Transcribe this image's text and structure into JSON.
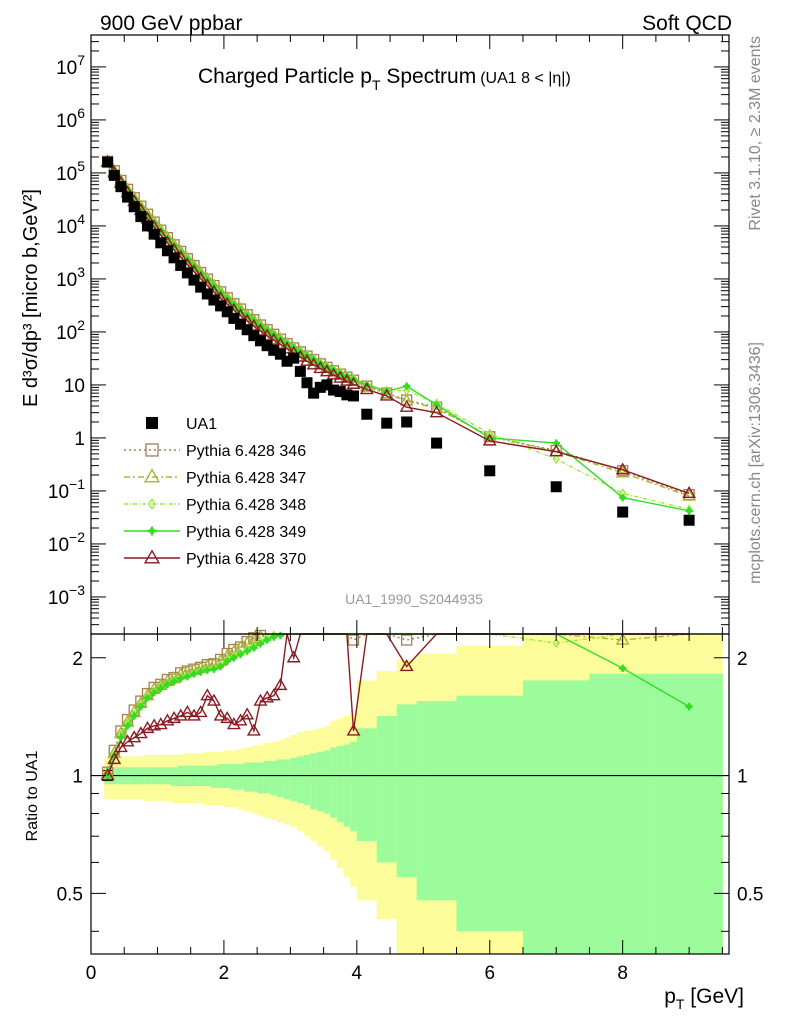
{
  "header": {
    "left": "900 GeV ppbar",
    "right": "Soft QCD"
  },
  "side_labels": {
    "rivet": "Rivet 3.1.10, ≥ 2.3M events",
    "mcplots": "mcplots.cern.ch [arXiv:1306.3436]"
  },
  "chart_data": {
    "type": "scatter",
    "title": "Charged Particle p",
    "title_sub": "T",
    "title_tail": " Spectrum",
    "title_note": "(UA1   8 < |η|)",
    "analysis_id": "UA1_1990_S2044935",
    "ylabel": "E d³σ/dp³ [micro b,GeV²]",
    "ratio_ylabel": "Ratio to UA1",
    "xlabel": "p",
    "xlabel_sub": "T",
    "xlabel_unit": " [GeV]",
    "xlim": [
      0,
      9.6
    ],
    "ylim_log": [
      0.0002,
      40000000
    ],
    "ratio_ylim": [
      0.35,
      2.3
    ],
    "x_ticks": [
      "0",
      "2",
      "4",
      "6",
      "8"
    ],
    "y_ticks": [
      {
        "value": 0.001,
        "base": "10",
        "exp": "−3"
      },
      {
        "value": 0.01,
        "base": "10",
        "exp": "−2"
      },
      {
        "value": 0.1,
        "base": "10",
        "exp": "−1"
      },
      {
        "value": 1,
        "base": "1",
        "exp": ""
      },
      {
        "value": 10,
        "base": "10",
        "exp": ""
      },
      {
        "value": 100,
        "base": "10",
        "exp": "2"
      },
      {
        "value": 1000,
        "base": "10",
        "exp": "3"
      },
      {
        "value": 10000,
        "base": "10",
        "exp": "4"
      },
      {
        "value": 100000,
        "base": "10",
        "exp": "5"
      },
      {
        "value": 1000000,
        "base": "10",
        "exp": "6"
      },
      {
        "value": 10000000,
        "base": "10",
        "exp": "7"
      }
    ],
    "ratio_ticks": [
      {
        "value": 0.5,
        "label": "0.5"
      },
      {
        "value": 1,
        "label": "1"
      },
      {
        "value": 2,
        "label": "2"
      }
    ],
    "data": {
      "name": "UA1",
      "color": "#000000",
      "x": [
        0.25,
        0.35,
        0.45,
        0.55,
        0.65,
        0.75,
        0.85,
        0.95,
        1.05,
        1.15,
        1.25,
        1.35,
        1.45,
        1.55,
        1.65,
        1.75,
        1.85,
        1.95,
        2.05,
        2.15,
        2.25,
        2.35,
        2.45,
        2.55,
        2.65,
        2.75,
        2.85,
        2.95,
        3.05,
        3.15,
        3.25,
        3.35,
        3.45,
        3.55,
        3.65,
        3.75,
        3.85,
        3.95,
        4.15,
        4.45,
        4.75,
        5.2,
        6.0,
        7.0,
        8.0,
        9.0
      ],
      "y": [
        160000,
        90000,
        55000,
        35000,
        23000,
        15000,
        10000,
        7000,
        4800,
        3400,
        2500,
        1800,
        1300,
        950,
        700,
        520,
        400,
        310,
        240,
        180,
        140,
        110,
        85,
        68,
        55,
        45,
        38,
        28,
        32,
        18,
        11,
        7,
        9,
        10,
        8,
        7.5,
        6.5,
        6.2,
        2.8,
        1.9,
        2.0,
        0.8,
        0.24,
        0.12,
        0.04,
        0.028
      ]
    },
    "uncertainty_bands": {
      "x_edges": [
        0.2,
        0.3,
        0.4,
        0.5,
        0.6,
        0.7,
        0.8,
        0.9,
        1.0,
        1.1,
        1.2,
        1.3,
        1.4,
        1.5,
        1.6,
        1.7,
        1.8,
        1.9,
        2.0,
        2.1,
        2.2,
        2.3,
        2.4,
        2.5,
        2.6,
        2.7,
        2.8,
        2.9,
        3.0,
        3.1,
        3.2,
        3.3,
        3.4,
        3.5,
        3.6,
        3.7,
        3.8,
        3.9,
        4.0,
        4.3,
        4.6,
        4.9,
        5.5,
        6.5,
        7.5,
        8.5,
        9.5
      ],
      "yellow_hi": [
        1.12,
        1.12,
        1.12,
        1.12,
        1.12,
        1.12,
        1.13,
        1.13,
        1.13,
        1.13,
        1.13,
        1.13,
        1.14,
        1.14,
        1.14,
        1.15,
        1.15,
        1.15,
        1.16,
        1.16,
        1.17,
        1.18,
        1.19,
        1.2,
        1.21,
        1.22,
        1.23,
        1.25,
        1.27,
        1.29,
        1.3,
        1.31,
        1.32,
        1.34,
        1.38,
        1.4,
        1.42,
        1.44,
        1.75,
        1.85,
        1.98,
        2.05,
        2.15,
        2.3,
        2.3,
        2.3
      ],
      "yellow_lo": [
        0.87,
        0.87,
        0.87,
        0.87,
        0.87,
        0.87,
        0.86,
        0.86,
        0.86,
        0.86,
        0.85,
        0.85,
        0.85,
        0.85,
        0.85,
        0.84,
        0.84,
        0.84,
        0.83,
        0.83,
        0.82,
        0.81,
        0.8,
        0.79,
        0.78,
        0.77,
        0.76,
        0.75,
        0.74,
        0.72,
        0.7,
        0.68,
        0.66,
        0.64,
        0.61,
        0.58,
        0.55,
        0.52,
        0.48,
        0.43,
        0.35,
        0.35,
        0.35,
        0.35,
        0.35,
        0.35
      ],
      "green_hi": [
        1.05,
        1.05,
        1.05,
        1.05,
        1.05,
        1.05,
        1.05,
        1.05,
        1.05,
        1.05,
        1.05,
        1.06,
        1.06,
        1.06,
        1.06,
        1.06,
        1.06,
        1.07,
        1.07,
        1.07,
        1.07,
        1.08,
        1.08,
        1.08,
        1.09,
        1.09,
        1.1,
        1.1,
        1.11,
        1.12,
        1.13,
        1.14,
        1.15,
        1.16,
        1.18,
        1.19,
        1.2,
        1.22,
        1.32,
        1.42,
        1.52,
        1.55,
        1.6,
        1.75,
        1.82,
        1.82
      ],
      "green_lo": [
        0.95,
        0.95,
        0.95,
        0.95,
        0.95,
        0.95,
        0.95,
        0.95,
        0.95,
        0.95,
        0.94,
        0.94,
        0.94,
        0.94,
        0.94,
        0.94,
        0.93,
        0.93,
        0.93,
        0.92,
        0.92,
        0.91,
        0.91,
        0.9,
        0.9,
        0.89,
        0.88,
        0.87,
        0.86,
        0.85,
        0.84,
        0.82,
        0.81,
        0.8,
        0.78,
        0.76,
        0.74,
        0.72,
        0.68,
        0.6,
        0.55,
        0.48,
        0.4,
        0.35,
        0.35,
        0.35
      ]
    },
    "series": [
      {
        "name": "Pythia 6.428 346",
        "color": "#a87d50",
        "marker": "square",
        "dash": "2,3",
        "x": [
          0.25,
          0.35,
          0.45,
          0.55,
          0.65,
          0.75,
          0.85,
          0.95,
          1.05,
          1.15,
          1.25,
          1.35,
          1.45,
          1.55,
          1.65,
          1.75,
          1.85,
          1.95,
          2.05,
          2.15,
          2.25,
          2.35,
          2.45,
          2.55,
          2.65,
          2.75,
          2.85,
          2.95,
          3.05,
          3.15,
          3.25,
          3.35,
          3.45,
          3.55,
          3.65,
          3.75,
          3.85,
          3.95,
          4.15,
          4.45,
          4.75,
          5.2,
          6.0,
          7.0,
          8.0,
          9.0
        ],
        "y": [
          165000,
          110000,
          72000,
          49000,
          34000,
          23500,
          16600,
          11800,
          8300,
          6000,
          4400,
          3300,
          2400,
          1780,
          1320,
          990,
          750,
          570,
          440,
          340,
          270,
          210,
          170,
          135,
          110,
          90,
          73,
          60,
          50,
          42,
          35,
          30,
          25,
          21.5,
          18.5,
          16,
          14,
          12.3,
          9.5,
          7,
          5.2,
          3.8,
          1.05,
          0.58,
          0.24,
          0.085
        ],
        "ratio": [
          1.02,
          1.16,
          1.3,
          1.39,
          1.47,
          1.55,
          1.62,
          1.68,
          1.71,
          1.76,
          1.78,
          1.83,
          1.85,
          1.87,
          1.89,
          1.92,
          1.93,
          1.98,
          2.05,
          2.1,
          2.13,
          2.2,
          2.25,
          2.28,
          2.3,
          2.3,
          2.3,
          2.3,
          2.3,
          2.3,
          2.3,
          2.3,
          2.3,
          2.3,
          2.3,
          2.3,
          2.3,
          2.22,
          2.3,
          2.3,
          2.22,
          2.3,
          2.3,
          2.3,
          2.3,
          2.3
        ]
      },
      {
        "name": "Pythia 6.428 347",
        "color": "#a6b535",
        "marker": "triangle",
        "dash": "6,3,2,3",
        "x": [
          0.25,
          0.35,
          0.45,
          0.55,
          0.65,
          0.75,
          0.85,
          0.95,
          1.05,
          1.15,
          1.25,
          1.35,
          1.45,
          1.55,
          1.65,
          1.75,
          1.85,
          1.95,
          2.05,
          2.15,
          2.25,
          2.35,
          2.45,
          2.55,
          2.65,
          2.75,
          2.85,
          2.95,
          3.05,
          3.15,
          3.25,
          3.35,
          3.45,
          3.55,
          3.65,
          3.75,
          3.85,
          3.95,
          4.15,
          4.45,
          4.75,
          5.2,
          6.0,
          7.0,
          8.0,
          9.0
        ],
        "y": [
          163000,
          108000,
          71000,
          48000,
          33500,
          23000,
          16300,
          11600,
          8200,
          5900,
          4350,
          3250,
          2380,
          1760,
          1300,
          980,
          740,
          560,
          430,
          330,
          265,
          205,
          165,
          132,
          107,
          88,
          72,
          59,
          49,
          41,
          34,
          29,
          24.5,
          21,
          18,
          15.6,
          13.7,
          12,
          9.3,
          6.8,
          5.0,
          3.6,
          1.1,
          0.55,
          0.22,
          0.08
        ],
        "ratio": [
          1.01,
          1.14,
          1.28,
          1.37,
          1.45,
          1.53,
          1.6,
          1.66,
          1.7,
          1.74,
          1.77,
          1.81,
          1.84,
          1.86,
          1.88,
          1.9,
          1.92,
          1.96,
          2.02,
          2.07,
          2.12,
          2.18,
          2.22,
          2.26,
          2.3,
          2.3,
          2.3,
          2.3,
          2.3,
          2.3,
          2.3,
          2.3,
          2.3,
          2.3,
          2.3,
          2.3,
          2.3,
          2.3,
          2.3,
          2.3,
          2.3,
          2.3,
          2.3,
          2.3,
          2.22,
          2.3
        ]
      },
      {
        "name": "Pythia 6.428 348",
        "color": "#9ee83e",
        "marker": "diamond",
        "dash": "4,2,1,2",
        "x": [
          0.25,
          0.35,
          0.45,
          0.55,
          0.65,
          0.75,
          0.85,
          0.95,
          1.05,
          1.15,
          1.25,
          1.35,
          1.45,
          1.55,
          1.65,
          1.75,
          1.85,
          1.95,
          2.05,
          2.15,
          2.25,
          2.35,
          2.45,
          2.55,
          2.65,
          2.75,
          2.85,
          2.95,
          3.05,
          3.15,
          3.25,
          3.35,
          3.45,
          3.55,
          3.65,
          3.75,
          3.85,
          3.95,
          4.15,
          4.45,
          4.75,
          5.2,
          6.0,
          7.0,
          8.0,
          9.0
        ],
        "y": [
          162000,
          106000,
          70000,
          47500,
          33000,
          22800,
          16000,
          11500,
          8100,
          5850,
          4300,
          3200,
          2350,
          1740,
          1290,
          970,
          735,
          555,
          428,
          330,
          262,
          204,
          164,
          132,
          108,
          89,
          74,
          61,
          51,
          43,
          36,
          30.5,
          26,
          22.5,
          19.5,
          17,
          15,
          13.2,
          10.2,
          7.8,
          7.8,
          4.5,
          1.2,
          0.4,
          0.09,
          0.045
        ],
        "ratio": [
          1.01,
          1.13,
          1.27,
          1.36,
          1.43,
          1.52,
          1.6,
          1.64,
          1.69,
          1.72,
          1.75,
          1.78,
          1.8,
          1.83,
          1.85,
          1.87,
          1.88,
          1.92,
          1.98,
          2.02,
          2.05,
          2.1,
          2.15,
          2.2,
          2.25,
          2.28,
          2.3,
          2.3,
          2.3,
          2.3,
          2.3,
          2.3,
          2.3,
          2.3,
          2.3,
          2.3,
          2.3,
          2.3,
          2.3,
          2.3,
          2.3,
          2.3,
          2.3,
          2.18,
          2.3,
          2.3
        ]
      },
      {
        "name": "Pythia 6.428 349",
        "color": "#33dd22",
        "marker": "cross",
        "dash": "",
        "x": [
          0.25,
          0.35,
          0.45,
          0.55,
          0.65,
          0.75,
          0.85,
          0.95,
          1.05,
          1.15,
          1.25,
          1.35,
          1.45,
          1.55,
          1.65,
          1.75,
          1.85,
          1.95,
          2.05,
          2.15,
          2.25,
          2.35,
          2.45,
          2.55,
          2.65,
          2.75,
          2.85,
          2.95,
          3.05,
          3.15,
          3.25,
          3.35,
          3.45,
          3.55,
          3.65,
          3.75,
          3.85,
          3.95,
          4.15,
          4.45,
          4.75,
          5.2,
          6.0,
          7.0,
          8.0,
          9.0
        ],
        "y": [
          162000,
          105000,
          69500,
          47000,
          32800,
          22600,
          15900,
          11400,
          8050,
          5800,
          4250,
          3180,
          2330,
          1730,
          1280,
          960,
          730,
          552,
          425,
          328,
          260,
          203,
          163,
          131,
          107,
          88,
          73,
          60,
          50,
          42,
          35.5,
          30,
          25.5,
          22,
          19,
          16.6,
          14.6,
          12.8,
          10,
          7.6,
          9.5,
          4.2,
          1.0,
          0.8,
          0.075,
          0.042
        ],
        "ratio": [
          1.0,
          1.12,
          1.25,
          1.34,
          1.42,
          1.5,
          1.58,
          1.63,
          1.67,
          1.71,
          1.74,
          1.77,
          1.79,
          1.82,
          1.84,
          1.86,
          1.87,
          1.9,
          1.96,
          2.0,
          2.04,
          2.08,
          2.12,
          2.17,
          2.22,
          2.26,
          2.28,
          2.3,
          2.3,
          2.3,
          2.3,
          2.3,
          2.3,
          2.3,
          2.3,
          2.3,
          2.3,
          2.3,
          2.3,
          2.3,
          2.3,
          2.3,
          2.3,
          2.3,
          1.88,
          1.5
        ]
      },
      {
        "name": "Pythia 6.428 370",
        "color": "#8b1a22",
        "marker": "triangle",
        "dash": "",
        "x": [
          0.25,
          0.35,
          0.45,
          0.55,
          0.65,
          0.75,
          0.85,
          0.95,
          1.05,
          1.15,
          1.25,
          1.35,
          1.45,
          1.55,
          1.65,
          1.75,
          1.85,
          1.95,
          2.05,
          2.15,
          2.25,
          2.35,
          2.45,
          2.55,
          2.65,
          2.75,
          2.85,
          2.95,
          3.05,
          3.15,
          3.25,
          3.35,
          3.45,
          3.55,
          3.65,
          3.75,
          3.85,
          3.95,
          4.15,
          4.45,
          4.75,
          5.2,
          6.0,
          7.0,
          8.0,
          9.0
        ],
        "y": [
          160000,
          100000,
          64000,
          42500,
          29000,
          19700,
          13600,
          9500,
          6700,
          4800,
          3500,
          2550,
          1850,
          1370,
          1010,
          750,
          565,
          430,
          332,
          257,
          203,
          160,
          128,
          104,
          84,
          70,
          58,
          48,
          40,
          33.5,
          28,
          24,
          20.5,
          17.8,
          15.5,
          13.5,
          11.8,
          10.3,
          8.2,
          6.2,
          3.8,
          3.0,
          0.88,
          0.55,
          0.25,
          0.09
        ],
        "ratio": [
          1.0,
          1.1,
          1.18,
          1.22,
          1.25,
          1.28,
          1.32,
          1.34,
          1.35,
          1.38,
          1.4,
          1.42,
          1.45,
          1.42,
          1.45,
          1.6,
          1.55,
          1.42,
          1.4,
          1.35,
          1.38,
          1.43,
          1.3,
          1.55,
          1.58,
          1.6,
          1.7,
          2.3,
          2.0,
          2.3,
          2.3,
          2.3,
          2.3,
          2.3,
          2.3,
          2.3,
          2.3,
          1.3,
          2.3,
          2.3,
          1.9,
          2.3,
          2.3,
          2.3,
          2.3,
          2.3
        ]
      }
    ]
  }
}
